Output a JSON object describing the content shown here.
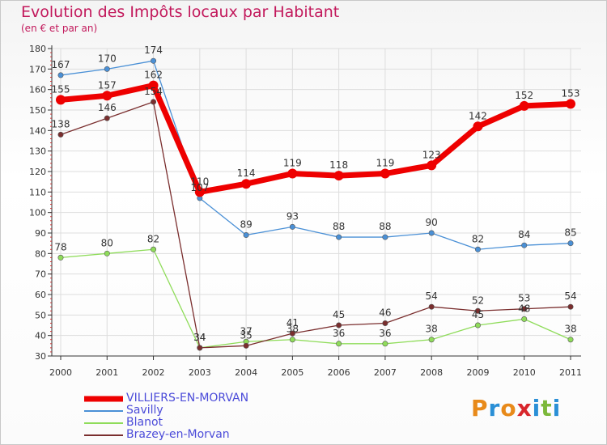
{
  "header": {
    "title": "Evolution des Impôts locaux par Habitant",
    "subtitle": "(en € et par an)"
  },
  "colors": {
    "title": "#c2185b",
    "legend_text": "#4b4bd9",
    "grid": "#dddddd",
    "axis": "#333333"
  },
  "logo": {
    "letters": [
      "P",
      "r",
      "o",
      "x",
      "i",
      "t",
      "i"
    ],
    "colors": [
      "#e88a1a",
      "#2a8fd6",
      "#e88a1a",
      "#d8262c",
      "#2a8fd6",
      "#7cb83a",
      "#2a8fd6"
    ]
  },
  "chart_data": {
    "type": "line",
    "title": "Evolution des Impôts locaux par Habitant",
    "subtitle": "(en € et par an)",
    "xlabel": "",
    "ylabel": "",
    "categories": [
      "2000",
      "2001",
      "2002",
      "2003",
      "2004",
      "2005",
      "2006",
      "2007",
      "2008",
      "2009",
      "2010",
      "2011"
    ],
    "ylim": [
      30,
      180
    ],
    "yticks": [
      30,
      40,
      50,
      60,
      70,
      80,
      90,
      100,
      110,
      120,
      130,
      140,
      150,
      160,
      170,
      180
    ],
    "grid": true,
    "legend": "bottom-left",
    "series": [
      {
        "name": "VILLIERS-EN-MORVAN",
        "color": "#ee0000",
        "width": 7,
        "values": [
          155,
          157,
          162,
          110,
          114,
          119,
          118,
          119,
          123,
          142,
          152,
          153
        ]
      },
      {
        "name": "Savilly",
        "color": "#4a90d6",
        "width": 1.3,
        "values": [
          167,
          170,
          174,
          107,
          89,
          93,
          88,
          88,
          90,
          82,
          84,
          85
        ]
      },
      {
        "name": "Blanot",
        "color": "#8fdc5a",
        "width": 1.3,
        "values": [
          78,
          80,
          82,
          34,
          37,
          38,
          36,
          36,
          38,
          45,
          48,
          38
        ]
      },
      {
        "name": "Brazey-en-Morvan",
        "color": "#7a2e2e",
        "width": 1.3,
        "values": [
          138,
          146,
          154,
          34,
          35,
          41,
          45,
          46,
          54,
          52,
          53,
          54
        ]
      }
    ]
  }
}
